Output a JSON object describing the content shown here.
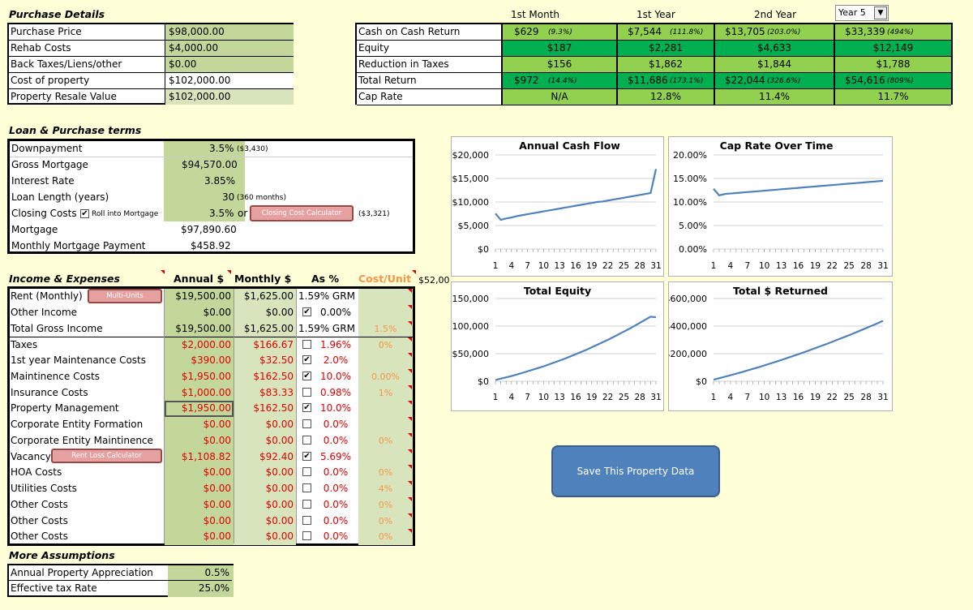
{
  "purchase": {
    "title": "Purchase Details",
    "rows": [
      {
        "label": "Purchase Price",
        "value": "$98,000.00"
      },
      {
        "label": "Rehab Costs",
        "value": "$4,000.00"
      },
      {
        "label": "Back Taxes/Liens/other",
        "value": "$0.00"
      },
      {
        "label": "Cost of property",
        "value": "$102,000.00"
      },
      {
        "label": "Property Resale Value",
        "value": "$102,000.00"
      }
    ]
  },
  "returns": {
    "headers": [
      "1st Month",
      "1st Year",
      "2nd Year"
    ],
    "year_select": "Year 5",
    "rows": [
      {
        "label": "Cash on Cash Return",
        "m": "$629",
        "mp": "(9.3%)",
        "y1": "$7,544",
        "y1p": "(111.8%)",
        "y2": "$13,705",
        "y2p": "(203.0%)",
        "y5": "$33,339",
        "y5p": "(494%)"
      },
      {
        "label": "Equity",
        "m": "$187",
        "mp": "",
        "y1": "$2,281",
        "y1p": "",
        "y2": "$4,633",
        "y2p": "",
        "y5": "$12,149",
        "y5p": ""
      },
      {
        "label": "Reduction in Taxes",
        "m": "$156",
        "mp": "",
        "y1": "$1,862",
        "y1p": "",
        "y2": "$1,844",
        "y2p": "",
        "y5": "$1,788",
        "y5p": ""
      },
      {
        "label": "Total Return",
        "m": "$972",
        "mp": "(14.4%)",
        "y1": "$11,686",
        "y1p": "(173.1%)",
        "y2": "$22,044",
        "y2p": "(326.6%)",
        "y5": "$54,616",
        "y5p": "(809%)"
      },
      {
        "label": "Cap Rate",
        "m": "N/A",
        "mp": "",
        "y1": "12.8%",
        "y1p": "",
        "y2": "11.4%",
        "y2p": "",
        "y5": "11.7%",
        "y5p": ""
      }
    ]
  },
  "loan": {
    "title": "Loan & Purchase terms",
    "downpayment": {
      "label": "Downpayment",
      "value": "3.5%",
      "note": "($3,430)"
    },
    "gross": {
      "label": "Gross Mortgage",
      "value": "$94,570.00"
    },
    "rate": {
      "label": "Interest Rate",
      "value": "3.85%"
    },
    "length": {
      "label": "Loan Length (years)",
      "value": "30",
      "note": "(360 months)"
    },
    "closing": {
      "label": "Closing Costs",
      "checkbox_label": "Roll into Mortgage",
      "value": "3.5%",
      "or": "or",
      "button": "Closing Cost Calculator",
      "note": "($3,321)"
    },
    "mortgage": {
      "label": "Mortgage",
      "value": "$97,890.60"
    },
    "monthly": {
      "label": "Monthly Mortgage Payment",
      "value": "$458.92"
    }
  },
  "income": {
    "title": "Income & Expenses",
    "h_annual": "Annual $",
    "h_monthly": "Monthly $",
    "h_pct": "As %",
    "h_cost": "Cost/Unit",
    "h_overflow": "$52,00",
    "multi_units": "Multi-Units",
    "rent_loss": "Rent Loss Calculator",
    "rows": [
      {
        "label": "Rent (Monthly)",
        "annual": "$19,500.00",
        "monthly": "$1,625.00",
        "pct": "1.59% GRM",
        "cost": ""
      },
      {
        "label": "Other Income",
        "annual": "$0.00",
        "monthly": "$0.00",
        "pct": "0.00%",
        "cost": ""
      },
      {
        "label": "Total Gross Income",
        "annual": "$19,500.00",
        "monthly": "$1,625.00",
        "pct": "1.59% GRM",
        "cost": "1.5%"
      },
      {
        "label": "Taxes",
        "annual": "$2,000.00",
        "monthly": "$166.67",
        "pct": "1.96%",
        "cost": "0%"
      },
      {
        "label": "1st year Maintenance Costs",
        "annual": "$390.00",
        "monthly": "$32.50",
        "pct": "2.0%",
        "cost": ""
      },
      {
        "label": "Maintinence Costs",
        "annual": "$1,950.00",
        "monthly": "$162.50",
        "pct": "10.0%",
        "cost": "0.00%"
      },
      {
        "label": "Insurance Costs",
        "annual": "$1,000.00",
        "monthly": "$83.33",
        "pct": "0.98%",
        "cost": "1%"
      },
      {
        "label": "Property Management",
        "annual": "$1,950.00",
        "monthly": "$162.50",
        "pct": "10.0%",
        "cost": ""
      },
      {
        "label": "Corporate Entity Formation",
        "annual": "$0.00",
        "monthly": "$0.00",
        "pct": "0.0%",
        "cost": ""
      },
      {
        "label": "Corporate Entity Maintinence",
        "annual": "$0.00",
        "monthly": "$0.00",
        "pct": "0.0%",
        "cost": "0%"
      },
      {
        "label": "Vacancy",
        "annual": "$1,108.82",
        "monthly": "$92.40",
        "pct": "5.69%",
        "cost": ""
      },
      {
        "label": "HOA Costs",
        "annual": "$0.00",
        "monthly": "$0.00",
        "pct": "0.0%",
        "cost": "0%"
      },
      {
        "label": "Utilities Costs",
        "annual": "$0.00",
        "monthly": "$0.00",
        "pct": "0.0%",
        "cost": "4%"
      },
      {
        "label": "Other Costs",
        "annual": "$0.00",
        "monthly": "$0.00",
        "pct": "0.0%",
        "cost": "0%"
      },
      {
        "label": "Other Costs",
        "annual": "$0.00",
        "monthly": "$0.00",
        "pct": "0.0%",
        "cost": "0%"
      },
      {
        "label": "Other Costs",
        "annual": "$0.00",
        "monthly": "$0.00",
        "pct": "0.0%",
        "cost": "0%"
      }
    ]
  },
  "assumptions": {
    "title": "More Assumptions",
    "rows": [
      {
        "label": "Annual Property Appreciation",
        "value": "0.5%"
      },
      {
        "label": "Effective tax Rate",
        "value": "25.0%"
      }
    ]
  },
  "save_button": "Save This Property Data",
  "colors": {
    "green_bright": "#00b050",
    "green_light": "#92d050",
    "cell_green": "#c4d79b",
    "line": "#4f81bd",
    "button": "#4f81bd"
  },
  "chart_data": [
    {
      "type": "line",
      "title": "Annual Cash Flow",
      "yticks": [
        "$20,000",
        "$15,000",
        "$10,000",
        "$5,000",
        "$0"
      ],
      "ylim": [
        0,
        20000
      ],
      "xticks": [
        "1",
        "4",
        "7",
        "10",
        "13",
        "16",
        "19",
        "22",
        "25",
        "28",
        "31"
      ],
      "x": [
        1,
        2,
        3,
        4,
        5,
        6,
        7,
        8,
        9,
        10,
        11,
        12,
        13,
        14,
        15,
        16,
        17,
        18,
        19,
        20,
        21,
        22,
        23,
        24,
        25,
        26,
        27,
        28,
        29,
        30,
        31
      ],
      "values": [
        7544,
        6200,
        6500,
        6700,
        7000,
        7200,
        7400,
        7600,
        7800,
        8000,
        8200,
        8400,
        8600,
        8800,
        9000,
        9200,
        9400,
        9600,
        9800,
        10000,
        10100,
        10300,
        10500,
        10700,
        10900,
        11100,
        11300,
        11500,
        11700,
        11900,
        17000
      ]
    },
    {
      "type": "line",
      "title": "Cap Rate Over Time",
      "yticks": [
        "20.00%",
        "15.00%",
        "10.00%",
        "5.00%",
        "0.00%"
      ],
      "ylim": [
        0,
        20
      ],
      "xticks": [
        "1",
        "4",
        "7",
        "10",
        "13",
        "16",
        "19",
        "22",
        "25",
        "28",
        "31"
      ],
      "x": [
        1,
        2,
        3,
        4,
        5,
        6,
        7,
        8,
        9,
        10,
        11,
        12,
        13,
        14,
        15,
        16,
        17,
        18,
        19,
        20,
        21,
        22,
        23,
        24,
        25,
        26,
        27,
        28,
        29,
        30,
        31
      ],
      "values": [
        12.8,
        11.4,
        11.7,
        11.8,
        11.9,
        12.0,
        12.1,
        12.2,
        12.3,
        12.4,
        12.5,
        12.6,
        12.7,
        12.8,
        12.9,
        13.0,
        13.1,
        13.2,
        13.3,
        13.4,
        13.5,
        13.6,
        13.7,
        13.8,
        13.9,
        14.0,
        14.1,
        14.2,
        14.3,
        14.4,
        14.5
      ]
    },
    {
      "type": "line",
      "title": "Total Equity",
      "yticks": [
        "$150,000",
        "$100,000",
        "$50,000",
        "$0"
      ],
      "ylim": [
        0,
        150000
      ],
      "xticks": [
        "1",
        "4",
        "7",
        "10",
        "13",
        "16",
        "19",
        "22",
        "25",
        "28",
        "31"
      ],
      "x": [
        1,
        2,
        3,
        4,
        5,
        6,
        7,
        8,
        9,
        10,
        11,
        12,
        13,
        14,
        15,
        16,
        17,
        18,
        19,
        20,
        21,
        22,
        23,
        24,
        25,
        26,
        27,
        28,
        29,
        30,
        31
      ],
      "values": [
        2281,
        4633,
        7000,
        9500,
        12149,
        15000,
        18000,
        21000,
        24000,
        27000,
        30500,
        34000,
        37500,
        41000,
        45000,
        49000,
        53000,
        57000,
        61500,
        66000,
        70500,
        75000,
        80000,
        85000,
        90000,
        95000,
        100500,
        106000,
        111500,
        117000,
        116000
      ]
    },
    {
      "type": "line",
      "title": "Total $ Returned",
      "yticks": [
        "$600,000",
        "$400,000",
        "$200,000",
        "$0"
      ],
      "ylim": [
        0,
        600000
      ],
      "xticks": [
        "1",
        "4",
        "7",
        "10",
        "13",
        "16",
        "19",
        "22",
        "25",
        "28",
        "31"
      ],
      "x": [
        1,
        2,
        3,
        4,
        5,
        6,
        7,
        8,
        9,
        10,
        11,
        12,
        13,
        14,
        15,
        16,
        17,
        18,
        19,
        20,
        21,
        22,
        23,
        24,
        25,
        26,
        27,
        28,
        29,
        30,
        31
      ],
      "values": [
        11686,
        22044,
        33000,
        44000,
        54616,
        66000,
        78000,
        90000,
        102000,
        115000,
        128000,
        141000,
        154000,
        168000,
        182000,
        196000,
        210000,
        225000,
        240000,
        255000,
        270000,
        286000,
        302000,
        318000,
        334000,
        351000,
        368000,
        385000,
        402000,
        420000,
        438000
      ]
    }
  ]
}
